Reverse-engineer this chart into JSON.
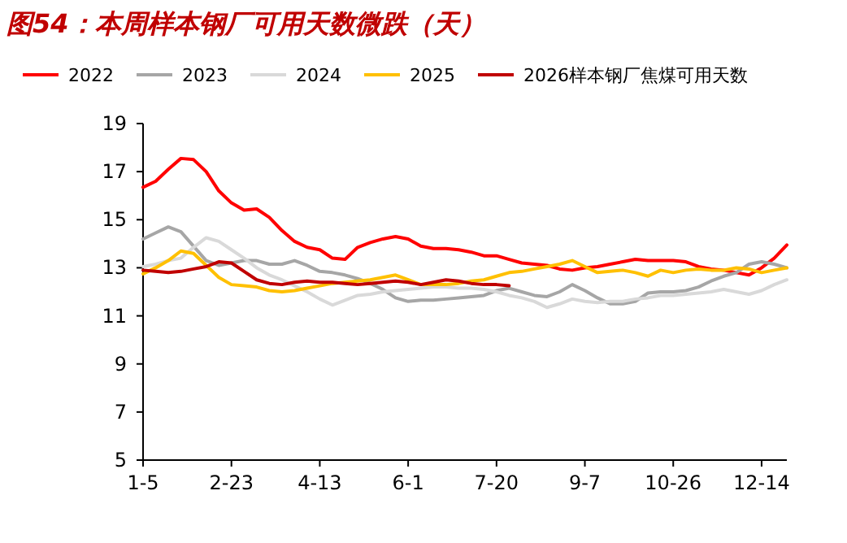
{
  "chart_data": {
    "type": "line",
    "title": "图54：本周样本钢厂可用天数微跌（天）",
    "categories": [
      "1-5",
      null,
      null,
      null,
      null,
      null,
      null,
      "2-23",
      null,
      null,
      null,
      null,
      null,
      null,
      "4-13",
      null,
      null,
      null,
      null,
      null,
      null,
      "6-1",
      null,
      null,
      null,
      null,
      null,
      null,
      "7-20",
      null,
      null,
      null,
      null,
      null,
      null,
      "9-7",
      null,
      null,
      null,
      null,
      null,
      null,
      "10-26",
      null,
      null,
      null,
      null,
      null,
      null,
      "12-14",
      null,
      null
    ],
    "ylim": [
      5,
      19
    ],
    "yticks": [
      5,
      7,
      9,
      11,
      13,
      15,
      17,
      19
    ],
    "legend": "top",
    "grid": false,
    "marker": "none",
    "line_style": "solid",
    "series": [
      {
        "name": "2022",
        "color": "#ff0000",
        "values": [
          16.35,
          16.6,
          17.1,
          17.55,
          17.5,
          17.0,
          16.2,
          15.7,
          15.4,
          15.45,
          15.1,
          14.55,
          14.1,
          13.85,
          13.75,
          13.4,
          13.35,
          13.85,
          14.05,
          14.2,
          14.3,
          14.2,
          13.9,
          13.8,
          13.8,
          13.75,
          13.65,
          13.5,
          13.5,
          13.35,
          13.2,
          13.15,
          13.1,
          12.95,
          12.9,
          13.0,
          13.05,
          13.15,
          13.25,
          13.35,
          13.3,
          13.3,
          13.3,
          13.25,
          13.05,
          12.95,
          12.9,
          12.8,
          12.7,
          13.0,
          13.4,
          13.95
        ]
      },
      {
        "name": "2023",
        "color": "#a6a6a6",
        "values": [
          14.2,
          14.45,
          14.7,
          14.5,
          13.9,
          13.3,
          13.1,
          13.2,
          13.3,
          13.3,
          13.15,
          13.15,
          13.3,
          13.1,
          12.85,
          12.8,
          12.7,
          12.55,
          12.35,
          12.1,
          11.75,
          11.6,
          11.65,
          11.65,
          11.7,
          11.75,
          11.8,
          11.85,
          12.05,
          12.15,
          12.0,
          11.85,
          11.8,
          12.0,
          12.3,
          12.05,
          11.75,
          11.5,
          11.5,
          11.6,
          11.95,
          12.0,
          12.0,
          12.05,
          12.2,
          12.45,
          12.65,
          12.8,
          13.15,
          13.25,
          13.15,
          13.0
        ]
      },
      {
        "name": "2024",
        "color": "#d9d9d9",
        "values": [
          13.05,
          13.15,
          13.3,
          13.4,
          13.85,
          14.25,
          14.1,
          13.75,
          13.4,
          13.0,
          12.7,
          12.5,
          12.25,
          12.0,
          11.7,
          11.45,
          11.65,
          11.85,
          11.9,
          12.0,
          12.05,
          12.1,
          12.15,
          12.2,
          12.2,
          12.15,
          12.15,
          12.1,
          12.0,
          11.85,
          11.75,
          11.6,
          11.35,
          11.5,
          11.7,
          11.6,
          11.55,
          11.6,
          11.6,
          11.7,
          11.75,
          11.85,
          11.85,
          11.9,
          11.95,
          12.0,
          12.1,
          12.0,
          11.9,
          12.05,
          12.3,
          12.5
        ]
      },
      {
        "name": "2025",
        "color": "#ffc000",
        "values": [
          12.75,
          13.0,
          13.3,
          13.7,
          13.6,
          13.1,
          12.6,
          12.3,
          12.25,
          12.2,
          12.05,
          12.0,
          12.05,
          12.15,
          12.25,
          12.35,
          12.4,
          12.45,
          12.5,
          12.6,
          12.7,
          12.5,
          12.3,
          12.3,
          12.3,
          12.35,
          12.45,
          12.5,
          12.65,
          12.8,
          12.85,
          12.95,
          13.05,
          13.15,
          13.3,
          13.05,
          12.8,
          12.85,
          12.9,
          12.8,
          12.65,
          12.9,
          12.8,
          12.9,
          12.95,
          12.9,
          12.9,
          13.0,
          12.95,
          12.8,
          12.9,
          13.0
        ]
      },
      {
        "name": "2026样本钢厂焦煤可用天数",
        "color": "#c00000",
        "values": [
          12.9,
          12.85,
          12.8,
          12.85,
          12.95,
          13.05,
          13.25,
          13.2,
          12.85,
          12.5,
          12.35,
          12.3,
          12.4,
          12.45,
          12.4,
          12.4,
          12.35,
          12.3,
          12.35,
          12.4,
          12.45,
          12.4,
          12.3,
          12.4,
          12.5,
          12.45,
          12.35,
          12.3,
          12.3,
          12.25,
          null,
          null,
          null,
          null,
          null,
          null,
          null,
          null,
          null,
          null,
          null,
          null,
          null,
          null,
          null,
          null,
          null,
          null,
          null,
          null,
          null,
          null
        ]
      }
    ]
  }
}
